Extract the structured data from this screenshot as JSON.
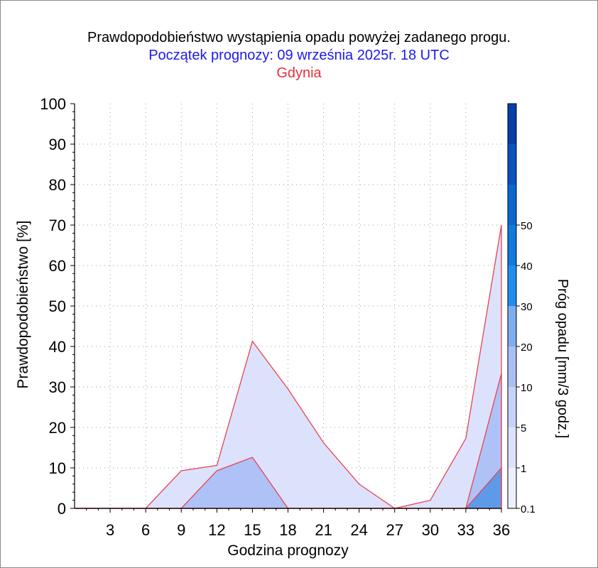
{
  "chart_data": {
    "type": "area",
    "title": "Prawdopodobieństwo wystąpienia opadu powyżej zadanego progu.",
    "subtitle": "Początek prognozy: 09 września 2025r. 18 UTC",
    "location": "Gdynia",
    "xlabel": "Godzina prognozy",
    "ylabel": "Prawdopodobieństwo [%]",
    "colorbar_label": "Próg opadu [mm/3 godz.]",
    "x": [
      0,
      3,
      6,
      9,
      12,
      15,
      18,
      21,
      24,
      27,
      30,
      33,
      36
    ],
    "xticks": [
      "3",
      "6",
      "9",
      "12",
      "15",
      "18",
      "21",
      "24",
      "27",
      "30",
      "33",
      "36"
    ],
    "yticks": [
      "0",
      "10",
      "20",
      "30",
      "40",
      "50",
      "60",
      "70",
      "80",
      "90",
      "100"
    ],
    "xlim": [
      0,
      36
    ],
    "ylim": [
      0,
      100
    ],
    "grid": true,
    "series": [
      {
        "name": "0.1",
        "color": "#dce2fc",
        "values": [
          0,
          0,
          0,
          9.3,
          10.6,
          41.3,
          29.5,
          16.2,
          6.0,
          0,
          2.0,
          17.3,
          70.0
        ]
      },
      {
        "name": "1",
        "color": "#afc2f7",
        "values": [
          0,
          0,
          0,
          0,
          9.3,
          12.6,
          0,
          0,
          0,
          0,
          0,
          0,
          33.3
        ]
      },
      {
        "name": "5",
        "color": "#5f9ae9",
        "values": [
          0,
          0,
          0,
          0,
          0,
          0,
          0,
          0,
          0,
          0,
          0,
          0,
          10.0
        ]
      }
    ],
    "colorbar": {
      "labels": [
        "0.1",
        "1",
        "5",
        "10",
        "20",
        "30",
        "40",
        "50"
      ],
      "colors": [
        "#eceffd",
        "#dce2fc",
        "#c6d3f9",
        "#a9c0f5",
        "#7fadf0",
        "#1f8ef2",
        "#1279e0",
        "#0b66d2",
        "#0952bf",
        "#073fa8"
      ]
    },
    "edge_color": "#e8434e"
  }
}
